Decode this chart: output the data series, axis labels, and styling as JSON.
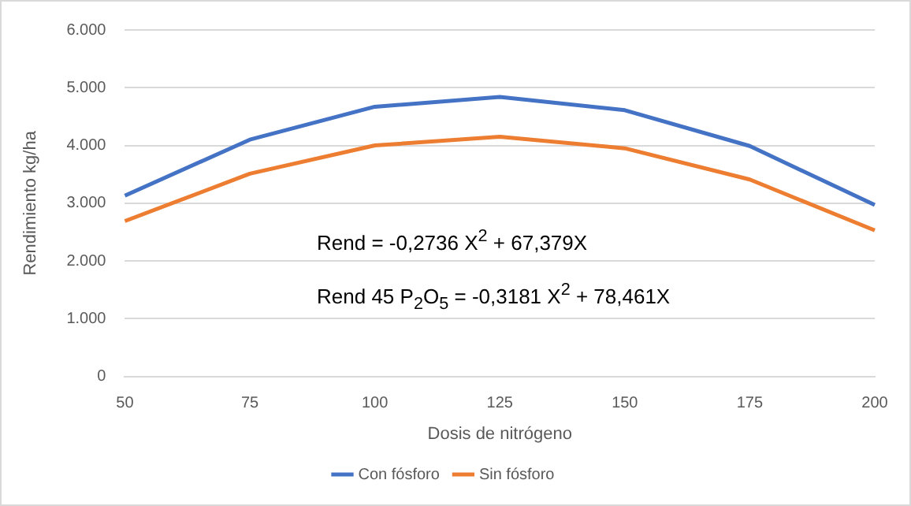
{
  "chart_data": {
    "type": "line",
    "xlabel": "Dosis de nitrógeno",
    "ylabel": "Rendimiento kg/ha",
    "categories": [
      "50",
      "75",
      "100",
      "125",
      "150",
      "175",
      "200"
    ],
    "series": [
      {
        "name": "Con fósforo",
        "color": "#4472c4",
        "values": [
          3130,
          4100,
          4670,
          4840,
          4610,
          3990,
          2970
        ]
      },
      {
        "name": "Sin fósforo",
        "color": "#ed7d31",
        "values": [
          2690,
          3510,
          4000,
          4150,
          3950,
          3410,
          2530
        ]
      }
    ],
    "ylim": [
      0,
      6000
    ],
    "yticks": [
      {
        "value": 0,
        "label": "0"
      },
      {
        "value": 1000,
        "label": "1.000"
      },
      {
        "value": 2000,
        "label": "2.000"
      },
      {
        "value": 3000,
        "label": "3.000"
      },
      {
        "value": 4000,
        "label": "4.000"
      },
      {
        "value": 5000,
        "label": "5.000"
      },
      {
        "value": 6000,
        "label": "6.000"
      }
    ],
    "grid": "y",
    "legend": "bottom",
    "marker": "none",
    "line_style": "solid",
    "annotations": [
      "Rend = -0,2736 X$^{2}$ + 67,379X",
      "Rend 45 P$_{2}$O$_{5}$ = -0,3181 X$^{2}$ + 78,461X"
    ]
  }
}
